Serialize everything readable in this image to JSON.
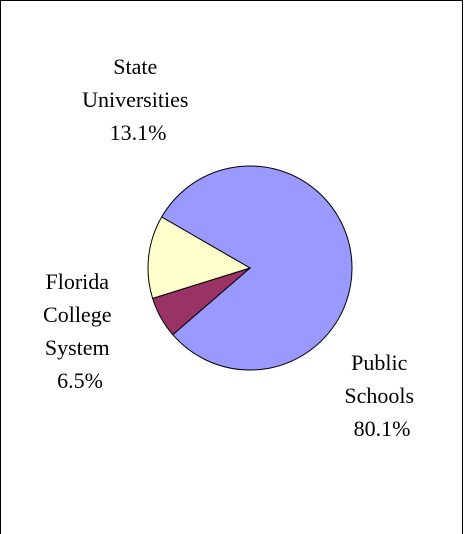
{
  "chart_data": {
    "type": "pie",
    "slices": [
      {
        "label": "Public Schools",
        "value": 80.1,
        "value_label": "80.1%",
        "color": "#9999ff"
      },
      {
        "label": "Florida College System",
        "value": 6.5,
        "value_label": "6.5%",
        "color": "#993366"
      },
      {
        "label": "State Universities",
        "value": 13.1,
        "value_label": "13.1%",
        "color": "#ffffcc"
      }
    ],
    "title": "",
    "legend": "none",
    "data_labels": "outside"
  }
}
